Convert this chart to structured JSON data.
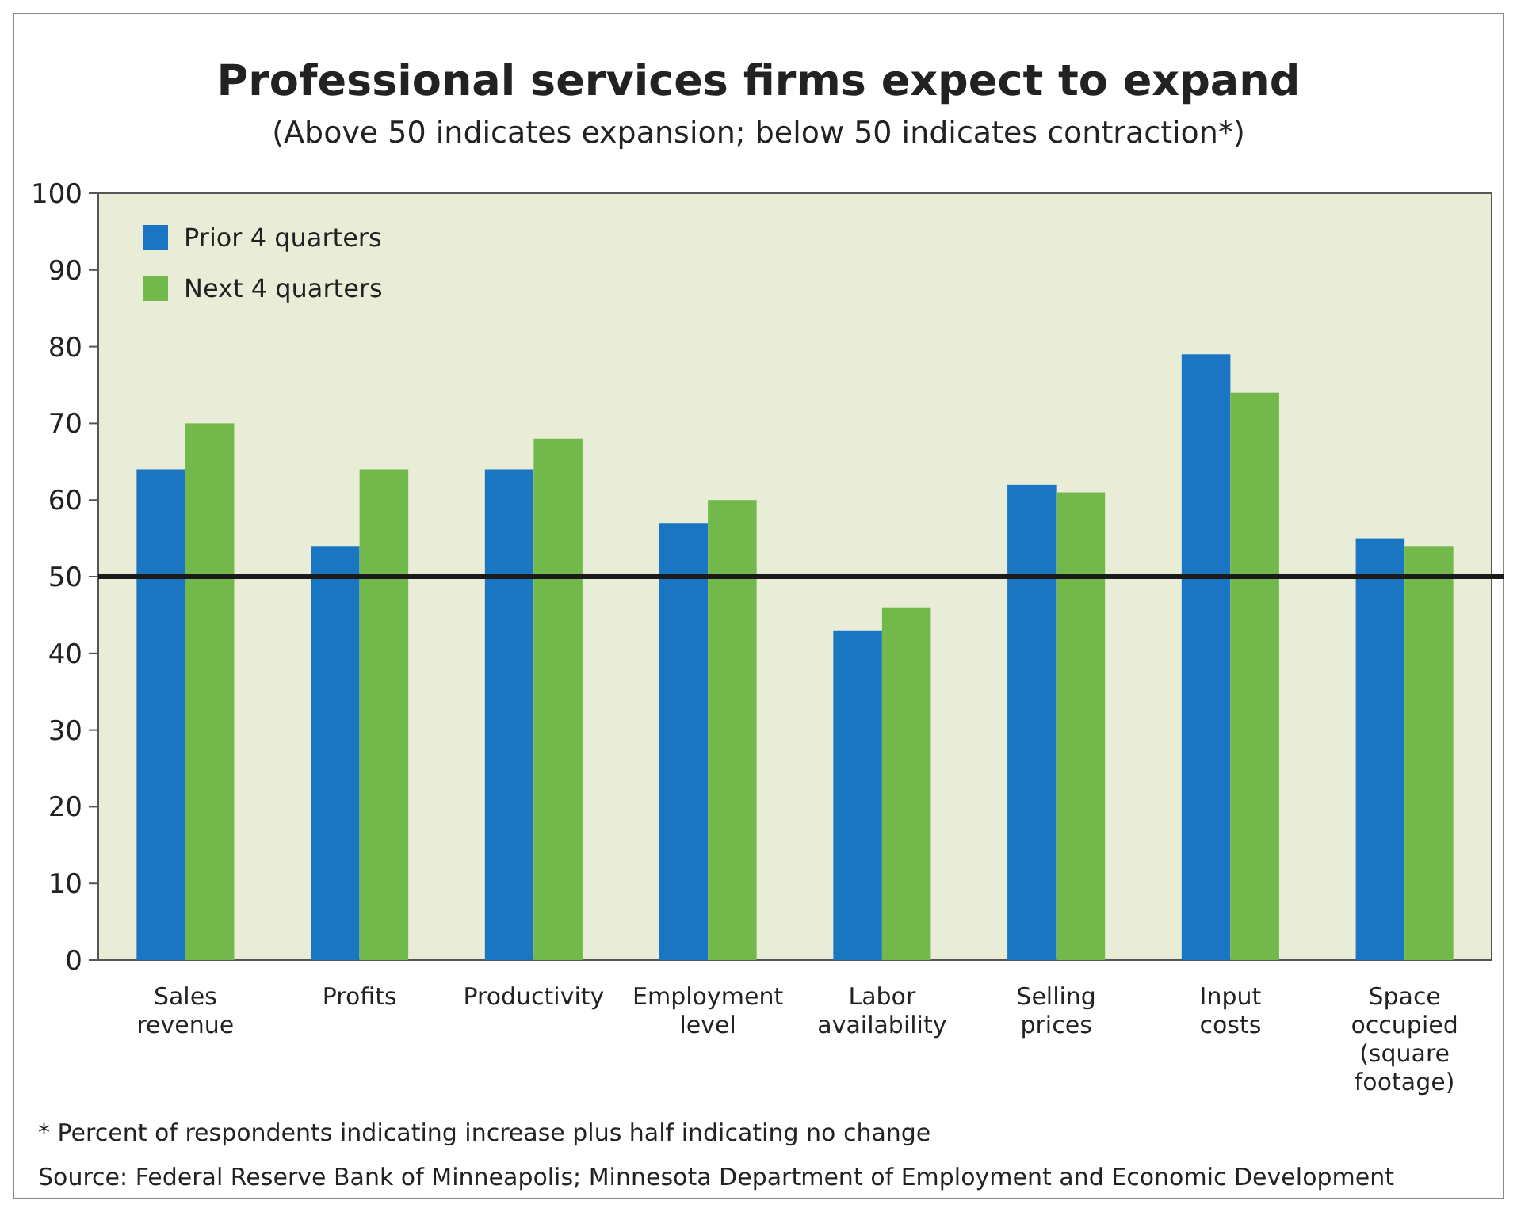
{
  "chart_data": {
    "type": "bar",
    "title": "Professional services firms expect to expand",
    "subtitle": "(Above 50 indicates expansion; below 50 indicates contraction*)",
    "categories": [
      "Sales revenue",
      "Profits",
      "Productivity",
      "Employment level",
      "Labor availability",
      "Selling prices",
      "Input costs",
      "Space occupied (square footage)"
    ],
    "series": [
      {
        "name": "Prior 4 quarters",
        "color": "#1a75c2",
        "values": [
          64,
          54,
          64,
          57,
          43,
          62,
          79,
          55
        ]
      },
      {
        "name": "Next 4 quarters",
        "color": "#72b84a",
        "values": [
          70,
          64,
          68,
          60,
          46,
          61,
          74,
          54
        ]
      }
    ],
    "ylim": [
      0,
      100
    ],
    "yticks": [
      0,
      10,
      20,
      30,
      40,
      50,
      60,
      70,
      80,
      90,
      100
    ],
    "grid": false,
    "legend": "top left",
    "ref_lines": [
      {
        "axis": "y",
        "value": 50,
        "color": "#1a1a1a"
      }
    ],
    "annotations": [
      "* Percent of respondents indicating increase plus half indicating no change",
      "Source: Federal Reserve Bank of Minneapolis; Minnesota Department of Employment and Economic Development"
    ]
  }
}
